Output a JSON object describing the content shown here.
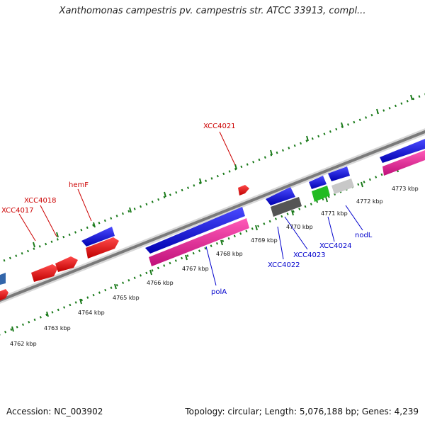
{
  "header": {
    "title": "Xanthomonas campestris pv. campestris str. ATCC 33913, compl..."
  },
  "footer": {
    "accession": "Accession: NC_003902",
    "stats": "Topology: circular; Length: 5,076,188 bp; Genes: 4,239"
  },
  "scale": {
    "ticks": [
      "4762 kbp",
      "4763 kbp",
      "4764 kbp",
      "4765 kbp",
      "4766 kbp",
      "4767 kbp",
      "4768 kbp",
      "4769 kbp",
      "4770 kbp",
      "4771 kbp",
      "4772 kbp",
      "4773 kbp"
    ]
  },
  "gene_labels": {
    "xcc4017": "XCC4017",
    "xcc4018": "XCC4018",
    "hemf": "hemF",
    "xcc4021": "XCC4021",
    "pola": "polA",
    "xcc4022": "XCC4022",
    "xcc4023": "XCC4023",
    "xcc4024": "XCC4024",
    "nodl": "nodL"
  },
  "colors": {
    "forward_gene": "#e01010",
    "reverse_gene": "#1a1ad8",
    "pink_track": "#e8239a",
    "green_feature": "#22bb22",
    "gray_dark": "#555555",
    "gray_light": "#c8c8c8",
    "backbone": "#888888",
    "tick_green": "#1a7a1a",
    "label_red": "#cc0000",
    "label_blue": "#0000cc"
  }
}
